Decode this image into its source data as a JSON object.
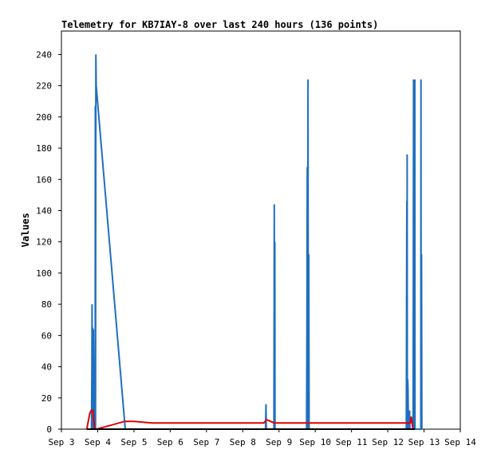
{
  "chart_data": {
    "type": "line",
    "title": "Telemetry for KB7IAY-8 over last 240 hours (136 points)",
    "xlabel": "",
    "ylabel": "Values",
    "x_unit": "day-of-September (decimal)",
    "xlim": [
      3,
      14
    ],
    "ylim": [
      0,
      255
    ],
    "x_ticks": [
      {
        "x": 3,
        "label": "Sep 3"
      },
      {
        "x": 4,
        "label": "Sep 4"
      },
      {
        "x": 5,
        "label": "Sep 5"
      },
      {
        "x": 6,
        "label": "Sep 6"
      },
      {
        "x": 7,
        "label": "Sep 7"
      },
      {
        "x": 8,
        "label": "Sep 8"
      },
      {
        "x": 9,
        "label": "Sep 9"
      },
      {
        "x": 10,
        "label": "Sep 10"
      },
      {
        "x": 11,
        "label": "Sep 11"
      },
      {
        "x": 12,
        "label": "Sep 12"
      },
      {
        "x": 13,
        "label": "Sep 13"
      },
      {
        "x": 14,
        "label": "Sep 14"
      }
    ],
    "y_ticks": [
      0,
      20,
      40,
      60,
      80,
      100,
      120,
      140,
      160,
      180,
      200,
      220,
      240
    ],
    "grid": false,
    "legend": "none",
    "series": [
      {
        "color": "#1f6fc0",
        "points": [
          [
            3.83,
            0
          ],
          [
            3.84,
            40
          ],
          [
            3.845,
            80
          ],
          [
            3.85,
            40
          ],
          [
            3.86,
            65
          ],
          [
            3.87,
            0
          ],
          [
            3.88,
            64
          ],
          [
            3.89,
            32
          ],
          [
            3.9,
            0
          ],
          [
            3.93,
            0
          ],
          [
            3.935,
            207
          ],
          [
            3.94,
            0
          ],
          [
            3.95,
            240
          ],
          [
            3.96,
            220
          ],
          [
            4.76,
            0
          ],
          [
            8.63,
            0
          ],
          [
            8.64,
            16
          ],
          [
            8.65,
            0
          ],
          [
            8.86,
            0
          ],
          [
            8.87,
            144
          ],
          [
            8.88,
            0
          ],
          [
            8.885,
            120
          ],
          [
            8.89,
            0
          ],
          [
            9.76,
            0
          ],
          [
            9.77,
            56
          ],
          [
            9.78,
            168
          ],
          [
            9.79,
            0
          ],
          [
            9.8,
            224
          ],
          [
            9.81,
            0
          ],
          [
            9.82,
            112
          ],
          [
            9.83,
            0
          ],
          [
            12.51,
            0
          ],
          [
            12.515,
            28
          ],
          [
            12.52,
            88
          ],
          [
            12.525,
            146
          ],
          [
            12.53,
            0
          ],
          [
            12.535,
            176
          ],
          [
            12.54,
            0
          ],
          [
            12.55,
            32
          ],
          [
            12.56,
            24
          ],
          [
            12.57,
            0
          ],
          [
            12.6,
            12
          ],
          [
            12.61,
            0
          ],
          [
            12.7,
            0
          ],
          [
            12.71,
            224
          ],
          [
            12.72,
            0
          ],
          [
            12.73,
            224
          ],
          [
            12.74,
            0
          ],
          [
            12.745,
            224
          ],
          [
            12.75,
            0
          ],
          [
            12.91,
            0
          ],
          [
            12.915,
            224
          ],
          [
            12.92,
            0
          ],
          [
            12.93,
            112
          ],
          [
            12.94,
            0
          ]
        ]
      },
      {
        "color": "#e00000",
        "points": [
          [
            3.7,
            0
          ],
          [
            3.78,
            10
          ],
          [
            3.82,
            12
          ],
          [
            3.87,
            12
          ],
          [
            3.92,
            0
          ],
          [
            3.97,
            0
          ],
          [
            4.75,
            5
          ],
          [
            5.0,
            5
          ],
          [
            5.5,
            4
          ],
          [
            8.58,
            4
          ],
          [
            8.66,
            6
          ],
          [
            8.87,
            4
          ],
          [
            12.55,
            4
          ],
          [
            12.62,
            4
          ],
          [
            12.65,
            8
          ],
          [
            12.69,
            0
          ]
        ]
      },
      {
        "color": "#000000",
        "points": [
          [
            3.7,
            0
          ],
          [
            12.75,
            0
          ]
        ]
      }
    ]
  }
}
